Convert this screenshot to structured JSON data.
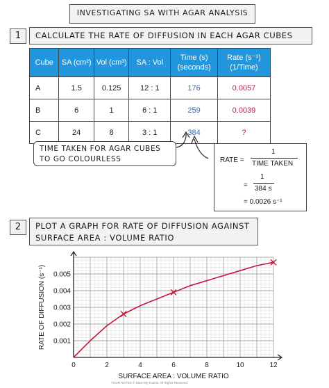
{
  "title": "INVESTIGATING SA WITH AGAR ANALYSIS",
  "step1": {
    "number": "1",
    "text": "CALCULATE THE RATE OF DIFFUSION IN EACH AGAR CUBES"
  },
  "table": {
    "headers": [
      "Cube",
      "SA (cm²)",
      "Vol (cm³)",
      "SA : Vol",
      "Time (s) (seconds)",
      "Rate (s⁻¹) (1/Time)"
    ],
    "rows": [
      [
        "A",
        "1.5",
        "0.125",
        "12 : 1",
        "176",
        "0.0057"
      ],
      [
        "B",
        "6",
        "1",
        "6 : 1",
        "259",
        "0.0039"
      ],
      [
        "C",
        "24",
        "8",
        "3 : 1",
        "384",
        "?"
      ]
    ],
    "colors": {
      "header_bg": "#2196dd",
      "time": "#2a6fd0",
      "rate": "#c3183c"
    }
  },
  "callout": {
    "text": "TIME TAKEN FOR AGAR CUBES TO GO COLOURLESS"
  },
  "rate_box": {
    "label": "RATE =",
    "numerator": "1",
    "denominator": "TIME TAKEN",
    "eq1": "=",
    "numerator2": "1",
    "denominator2": "384 s",
    "eq2": "= 0.0026 s⁻¹"
  },
  "step2": {
    "number": "2",
    "text": "PLOT A GRAPH FOR RATE OF DIFFUSION AGAINST SURFACE AREA : VOLUME RATIO"
  },
  "chart_data": {
    "type": "line",
    "xlabel": "SURFACE AREA : VOLUME RATIO",
    "ylabel": "RATE OF DIFFUSION (s⁻¹)",
    "xlim": [
      0,
      12
    ],
    "ylim": [
      0,
      0.006
    ],
    "x_ticks": [
      0,
      2,
      4,
      6,
      8,
      10,
      12
    ],
    "y_ticks": [
      0.001,
      0.002,
      0.003,
      0.004,
      0.005
    ],
    "y_tick_labels": [
      "0.001",
      "0.002",
      "0.003",
      "0.004",
      "0.005"
    ],
    "grid": true,
    "series": [
      {
        "values_x": [
          3,
          6,
          12
        ],
        "values_y": [
          0.0026,
          0.0039,
          0.0057
        ],
        "marker": "x",
        "color": "#c3183c"
      }
    ],
    "curve_x": [
      0,
      1,
      2,
      3,
      4,
      5,
      6,
      7,
      8,
      9,
      10,
      11,
      12
    ],
    "curve_y": [
      0,
      0.001,
      0.0019,
      0.0026,
      0.0031,
      0.0035,
      0.0039,
      0.0043,
      0.0046,
      0.0049,
      0.0052,
      0.0055,
      0.0057
    ]
  },
  "watermark": "YOUR NOTES © Save My Exams. All Rights Reserved"
}
